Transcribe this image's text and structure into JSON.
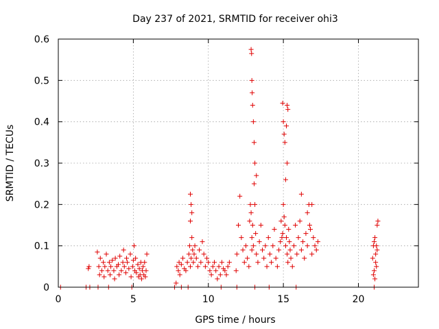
{
  "chart_data": {
    "type": "scatter",
    "title": "Day 237 of 2021, SRMTID for receiver ohi3",
    "xlabel": "GPS time / hours",
    "ylabel": "SRMTID / TECUs",
    "xlim": [
      0,
      24
    ],
    "ylim": [
      0,
      0.6
    ],
    "xticks": [
      0,
      5,
      10,
      15,
      20
    ],
    "yticks": [
      0,
      0.1,
      0.2,
      0.3,
      0.4,
      0.5,
      0.6
    ],
    "xtick_labels": [
      "0",
      "5",
      "10",
      "15",
      "20"
    ],
    "ytick_labels": [
      "0",
      "0.1",
      "0.2",
      "0.3",
      "0.4",
      "0.5",
      "0.6"
    ],
    "grid": true,
    "marker": "+",
    "color": "#e00000",
    "series": [
      {
        "name": "SRMTID",
        "x": [
          0.15,
          1.85,
          2.1,
          2.65,
          3.35,
          4.9,
          7.75,
          8.2,
          8.65,
          10.85,
          11.9,
          13.1,
          14.05,
          15.85,
          21.05,
          2.0,
          2.05,
          2.6,
          2.7,
          2.75,
          2.8,
          2.9,
          3.0,
          3.05,
          3.1,
          3.2,
          3.3,
          3.4,
          3.45,
          3.5,
          3.6,
          3.7,
          3.75,
          3.8,
          3.9,
          4.0,
          4.05,
          4.1,
          4.2,
          4.3,
          4.35,
          4.4,
          4.5,
          4.55,
          4.6,
          4.7,
          4.8,
          4.85,
          4.95,
          5.0,
          5.05,
          5.1,
          5.15,
          5.2,
          5.3,
          5.35,
          5.4,
          5.45,
          5.5,
          5.55,
          5.6,
          5.65,
          5.7,
          5.75,
          5.8,
          5.85,
          5.9,
          7.85,
          7.9,
          8.0,
          8.05,
          8.1,
          8.2,
          8.3,
          8.4,
          8.5,
          8.6,
          8.7,
          8.75,
          8.8,
          8.85,
          8.9,
          8.95,
          9.0,
          9.05,
          9.1,
          9.2,
          9.3,
          9.4,
          9.5,
          9.6,
          9.7,
          9.8,
          9.9,
          10.0,
          10.1,
          10.2,
          10.3,
          10.4,
          10.5,
          10.6,
          10.7,
          10.8,
          10.9,
          11.0,
          11.1,
          11.2,
          11.3,
          11.4,
          8.8,
          8.85,
          8.9,
          8.8,
          11.85,
          11.9,
          12.0,
          12.1,
          12.2,
          12.3,
          12.4,
          12.5,
          12.6,
          12.7,
          12.75,
          12.8,
          12.85,
          12.9,
          12.9,
          12.95,
          13.0,
          13.05,
          13.1,
          13.15,
          13.2,
          13.3,
          13.4,
          13.5,
          13.6,
          13.7,
          13.8,
          13.9,
          14.0,
          14.1,
          14.2,
          14.3,
          14.4,
          14.5,
          14.6,
          14.7,
          14.8,
          14.85,
          14.9,
          14.95,
          15.0,
          15.05,
          15.1,
          15.15,
          15.2,
          15.25,
          15.3,
          15.35,
          15.4,
          15.45,
          15.5,
          15.6,
          12.85,
          12.88,
          12.9,
          12.92,
          12.95,
          13.0,
          13.05,
          13.1,
          13.2,
          14.95,
          15.0,
          15.05,
          15.25,
          15.3,
          15.2,
          15.1,
          15.25,
          15.15,
          15.7,
          15.8,
          15.9,
          16.0,
          16.1,
          16.2,
          16.3,
          16.4,
          16.5,
          16.6,
          16.7,
          16.8,
          16.9,
          17.0,
          17.1,
          17.2,
          17.3,
          16.2,
          16.6,
          16.75,
          16.9,
          20.95,
          21.0,
          21.05,
          21.1,
          21.15,
          21.2,
          21.25,
          21.3,
          21.1,
          21.2,
          21.25,
          21.05,
          21.0,
          21.15
        ],
        "y": [
          0.0,
          0.0,
          0.0,
          0.0,
          0.0,
          0.0,
          0.0,
          0.0,
          0.0,
          0.0,
          0.0,
          0.0,
          0.0,
          0.0,
          0.0,
          0.045,
          0.05,
          0.085,
          0.05,
          0.03,
          0.07,
          0.04,
          0.06,
          0.025,
          0.05,
          0.08,
          0.04,
          0.06,
          0.03,
          0.05,
          0.065,
          0.04,
          0.02,
          0.07,
          0.05,
          0.055,
          0.03,
          0.075,
          0.04,
          0.06,
          0.09,
          0.05,
          0.035,
          0.07,
          0.06,
          0.045,
          0.08,
          0.025,
          0.05,
          0.065,
          0.1,
          0.04,
          0.07,
          0.035,
          0.055,
          0.025,
          0.045,
          0.03,
          0.06,
          0.02,
          0.04,
          0.05,
          0.03,
          0.06,
          0.025,
          0.04,
          0.08,
          0.01,
          0.05,
          0.04,
          0.06,
          0.03,
          0.055,
          0.07,
          0.045,
          0.04,
          0.06,
          0.08,
          0.1,
          0.05,
          0.07,
          0.12,
          0.09,
          0.06,
          0.08,
          0.1,
          0.07,
          0.05,
          0.09,
          0.06,
          0.11,
          0.08,
          0.05,
          0.07,
          0.06,
          0.04,
          0.03,
          0.05,
          0.06,
          0.04,
          0.02,
          0.05,
          0.03,
          0.06,
          0.045,
          0.04,
          0.03,
          0.05,
          0.06,
          0.225,
          0.2,
          0.18,
          0.16,
          0.04,
          0.08,
          0.15,
          0.22,
          0.12,
          0.09,
          0.06,
          0.1,
          0.07,
          0.05,
          0.16,
          0.2,
          0.18,
          0.12,
          0.09,
          0.15,
          0.1,
          0.25,
          0.2,
          0.13,
          0.08,
          0.06,
          0.11,
          0.15,
          0.09,
          0.07,
          0.1,
          0.05,
          0.12,
          0.08,
          0.06,
          0.1,
          0.14,
          0.07,
          0.05,
          0.09,
          0.11,
          0.16,
          0.12,
          0.13,
          0.2,
          0.17,
          0.15,
          0.1,
          0.12,
          0.08,
          0.06,
          0.14,
          0.11,
          0.09,
          0.07,
          0.05,
          0.575,
          0.565,
          0.5,
          0.47,
          0.44,
          0.4,
          0.35,
          0.3,
          0.27,
          0.445,
          0.4,
          0.37,
          0.44,
          0.43,
          0.39,
          0.35,
          0.3,
          0.26,
          0.1,
          0.15,
          0.08,
          0.12,
          0.16,
          0.09,
          0.11,
          0.07,
          0.13,
          0.1,
          0.2,
          0.14,
          0.08,
          0.12,
          0.1,
          0.09,
          0.11,
          0.225,
          0.18,
          0.15,
          0.2,
          0.07,
          0.1,
          0.04,
          0.12,
          0.06,
          0.1,
          0.09,
          0.16,
          0.02,
          0.05,
          0.15,
          0.11,
          0.03,
          0.08
        ]
      }
    ]
  }
}
